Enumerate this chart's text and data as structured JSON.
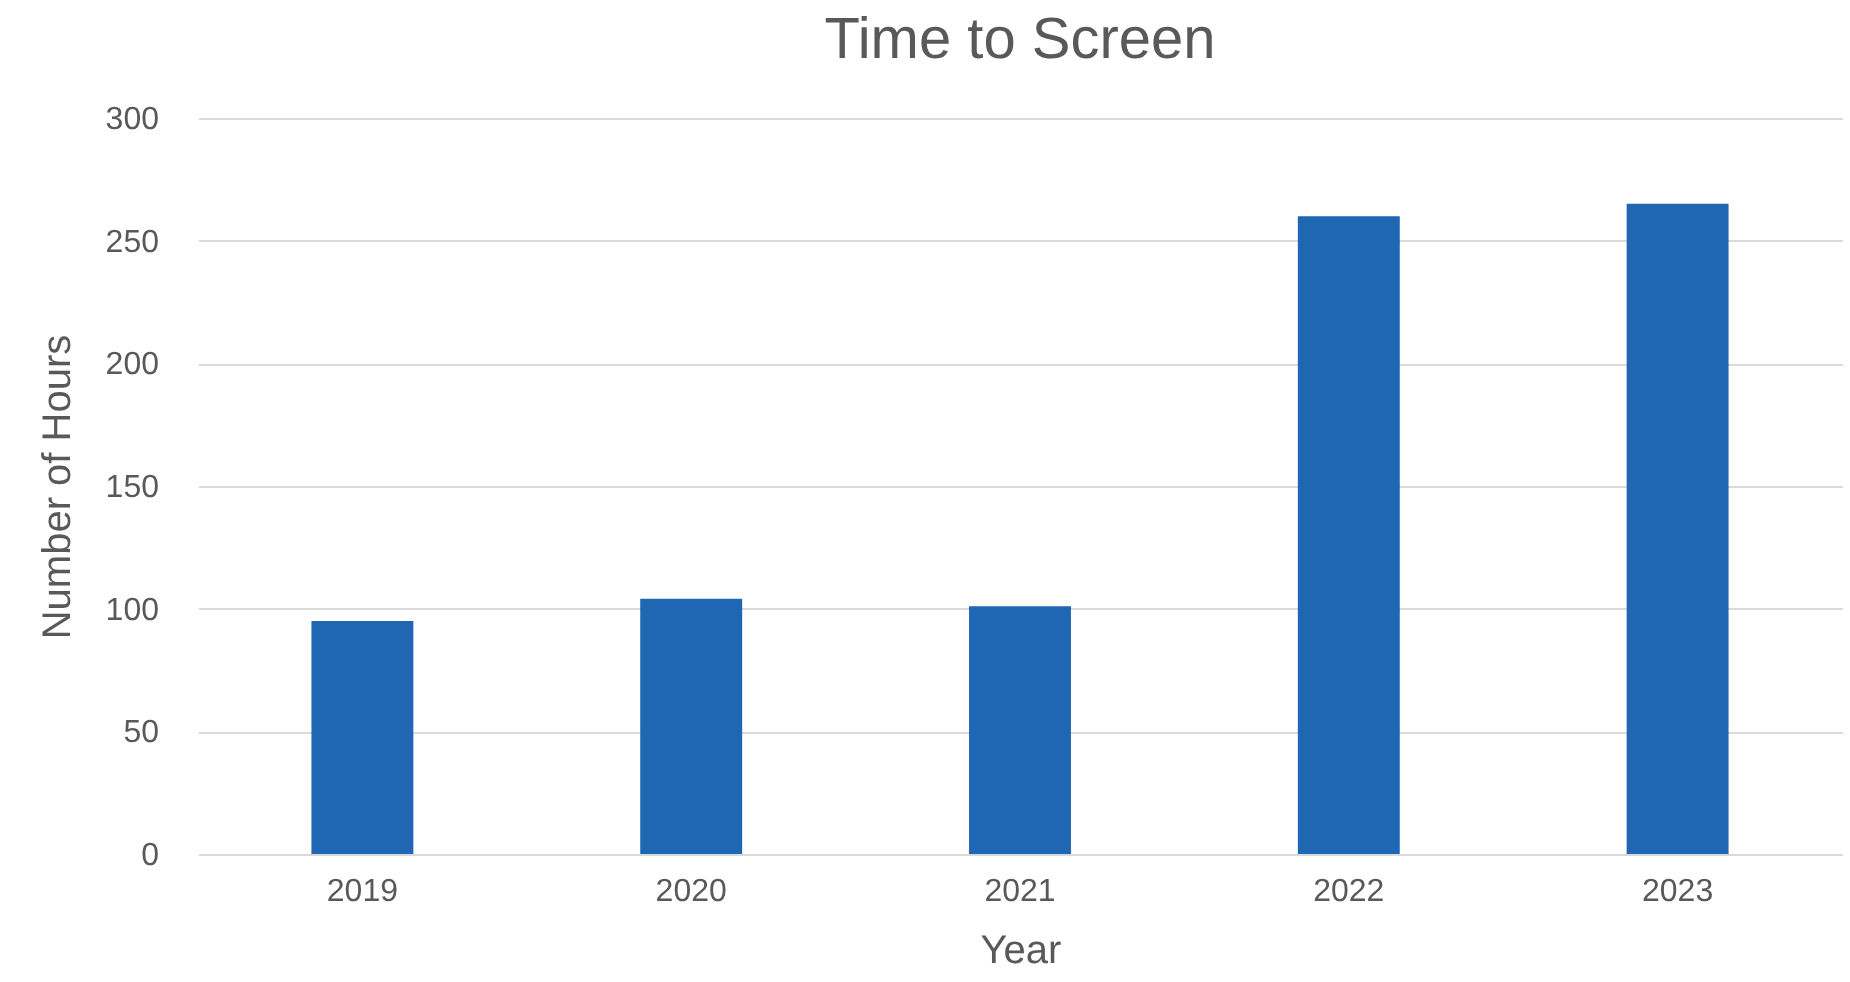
{
  "chart_data": {
    "type": "bar",
    "title": "Time to Screen",
    "xlabel": "Year",
    "ylabel": "Number of Hours",
    "categories": [
      "2019",
      "2020",
      "2021",
      "2022",
      "2023"
    ],
    "values": [
      95,
      104,
      101,
      260,
      265
    ],
    "color": "#1f67b3",
    "ylim": [
      0,
      300
    ],
    "yticks": [
      0,
      50,
      100,
      150,
      200,
      250,
      300
    ],
    "grid": "y"
  }
}
